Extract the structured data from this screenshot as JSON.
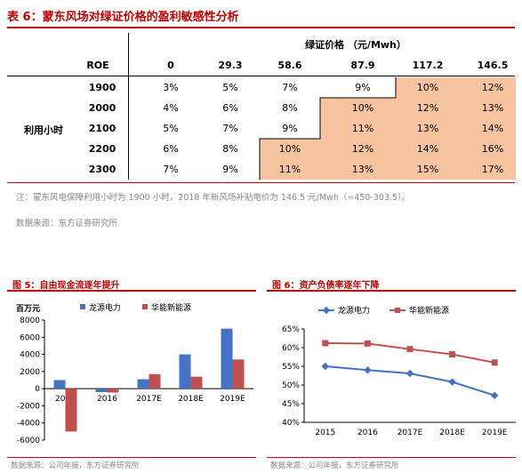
{
  "table6": {
    "title": "表 6：蒙东风场对绿证价格的盈利敏感性分析",
    "price_header": "绿证价格 （元/Mwh）",
    "roe_label": "ROE",
    "price_columns": [
      "0",
      "29.3",
      "58.6",
      "87.9",
      "117.2",
      "146.5"
    ],
    "row_group_label": "利用小时",
    "rows": [
      {
        "hours": "1900",
        "values": [
          "3%",
          "5%",
          "7%",
          "9%",
          "10%",
          "12%"
        ]
      },
      {
        "hours": "2000",
        "values": [
          "4%",
          "6%",
          "8%",
          "10%",
          "12%",
          "13%"
        ]
      },
      {
        "hours": "2100",
        "values": [
          "5%",
          "7%",
          "9%",
          "11%",
          "13%",
          "14%"
        ]
      },
      {
        "hours": "2200",
        "values": [
          "6%",
          "8%",
          "10%",
          "12%",
          "14%",
          "16%"
        ]
      },
      {
        "hours": "2300",
        "values": [
          "7%",
          "9%",
          "11%",
          "13%",
          "15%",
          "17%"
        ]
      }
    ],
    "highlight_color": "#f8c4a0",
    "note": "注：蒙东风电保障利用小时为 1900 小时，2018 年新风场补贴电价为 146.5 元/Mwh（=450-303.5）。",
    "source": "数据来源：东方证券研究所"
  },
  "chart5": {
    "title": "图 5：自由现金流逐年提升",
    "unit": "百万元",
    "source": "数据来源：公司年报，东方证券研究所"
  },
  "chart6": {
    "title": "图 6：资产负债率逐年下降",
    "source": "数据来源：公司年报，东方证券研究所"
  },
  "chart_data": [
    {
      "type": "bar",
      "title": "图 5：自由现金流逐年提升",
      "ylabel": "百万元",
      "categories": [
        "2015",
        "2016",
        "2017E",
        "2018E",
        "2019E"
      ],
      "series": [
        {
          "name": "龙源电力",
          "color": "#4472c4",
          "values": [
            1000,
            -400,
            1100,
            4000,
            7000
          ]
        },
        {
          "name": "华能新能源",
          "color": "#c0504d",
          "values": [
            -5000,
            -450,
            1700,
            1400,
            3400
          ]
        }
      ],
      "ylim": [
        -6000,
        8000
      ],
      "yticks": [
        -6000,
        -4000,
        -2000,
        0,
        2000,
        4000,
        6000,
        8000
      ],
      "legend": "top"
    },
    {
      "type": "line",
      "title": "图 6：资产负债率逐年下降",
      "categories": [
        "2015",
        "2016",
        "2017E",
        "2018E",
        "2019E"
      ],
      "series": [
        {
          "name": "龙源电力",
          "color": "#4472c4",
          "values": [
            55.0,
            54.0,
            53.1,
            50.8,
            47.2
          ]
        },
        {
          "name": "华能新能源",
          "color": "#c0504d",
          "values": [
            61.2,
            61.1,
            59.6,
            58.2,
            56.0
          ]
        }
      ],
      "ylim": [
        40,
        65
      ],
      "yticks": [
        "40%",
        "45%",
        "50%",
        "55%",
        "60%",
        "65%"
      ],
      "legend": "top"
    }
  ]
}
